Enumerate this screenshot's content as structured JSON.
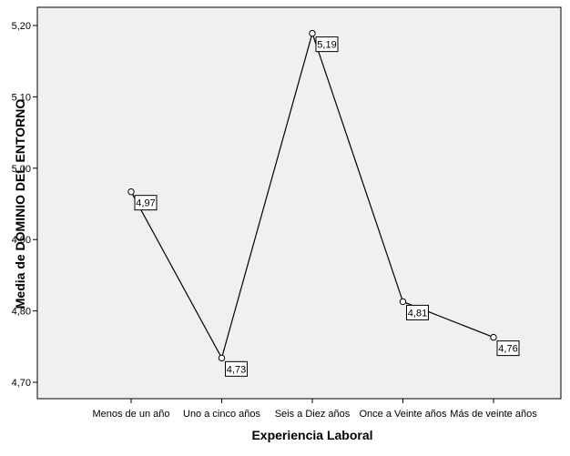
{
  "chart_data": {
    "type": "line",
    "title": "",
    "xlabel": "Experiencia Laboral",
    "ylabel": "Media de DOMINIO DEL ENTORNO",
    "categories": [
      "Menos de un año",
      "Uno a cinco años",
      "Seis a Diez años",
      "Once a Veinte años",
      "Más de veinte años"
    ],
    "series": [
      {
        "values": [
          4.967,
          4.734,
          5.189,
          4.813,
          4.763
        ],
        "data_labels": [
          "4,97",
          "4,73",
          "5,19",
          "4,81",
          "4,76"
        ]
      }
    ],
    "ylim": [
      4.68,
      5.23
    ],
    "yticks": [
      4.7,
      4.8,
      4.9,
      5.0,
      5.1,
      5.2
    ],
    "ytick_labels": [
      "4,70",
      "4,80",
      "4,90",
      "5,00",
      "5,10",
      "5,20"
    ],
    "grid": false,
    "legend": "none",
    "colors": {
      "plot_background": "#f0f0f0",
      "line": "#000000",
      "marker_fill": "#ffffff",
      "label_box": "#ffffff"
    }
  }
}
